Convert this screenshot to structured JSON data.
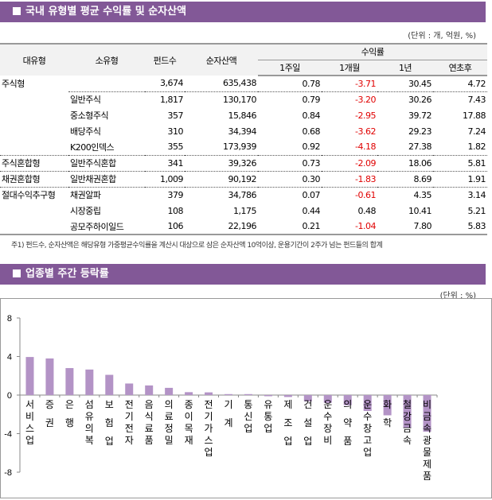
{
  "section1": {
    "title": "국내 유형별 평균 수익률 및 순자산액",
    "unit": "(단위 : 개, 억원, %)",
    "headers": {
      "major": "대유형",
      "minor": "소유형",
      "funds": "펀드수",
      "assets": "순자산액",
      "returns": "수익률",
      "w1": "1주일",
      "m1": "1개월",
      "y1": "1년",
      "ytd": "연초후"
    },
    "rows": [
      {
        "major": "주식형",
        "minor": "",
        "funds": "3,674",
        "assets": "635,438",
        "w1": "0.78",
        "m1": "-3.71",
        "y1": "30.45",
        "ytd": "4.72"
      },
      {
        "major": "",
        "minor": "일반주식",
        "funds": "1,817",
        "assets": "130,170",
        "w1": "0.79",
        "m1": "-3.20",
        "y1": "30.26",
        "ytd": "7.43"
      },
      {
        "major": "",
        "minor": "중소형주식",
        "funds": "357",
        "assets": "15,846",
        "w1": "0.84",
        "m1": "-2.95",
        "y1": "39.72",
        "ytd": "17.88"
      },
      {
        "major": "",
        "minor": "배당주식",
        "funds": "310",
        "assets": "34,394",
        "w1": "0.68",
        "m1": "-3.62",
        "y1": "29.23",
        "ytd": "7.24"
      },
      {
        "major": "",
        "minor": "K200인덱스",
        "funds": "355",
        "assets": "173,939",
        "w1": "0.92",
        "m1": "-4.18",
        "y1": "27.38",
        "ytd": "1.82"
      },
      {
        "major": "주식혼합형",
        "minor": "일반주식혼합",
        "funds": "341",
        "assets": "39,326",
        "w1": "0.73",
        "m1": "-2.09",
        "y1": "18.06",
        "ytd": "5.81"
      },
      {
        "major": "채권혼합형",
        "minor": "일반채권혼합",
        "funds": "1,009",
        "assets": "90,192",
        "w1": "0.30",
        "m1": "-1.83",
        "y1": "8.69",
        "ytd": "1.91"
      },
      {
        "major": "절대수익추구형",
        "minor": "채권알파",
        "funds": "379",
        "assets": "34,786",
        "w1": "0.07",
        "m1": "-0.61",
        "y1": "4.35",
        "ytd": "3.14"
      },
      {
        "major": "",
        "minor": "시장중립",
        "funds": "108",
        "assets": "1,175",
        "w1": "0.44",
        "m1": "0.48",
        "y1": "10.41",
        "ytd": "5.21"
      },
      {
        "major": "",
        "minor": "공모주하이일드",
        "funds": "106",
        "assets": "22,196",
        "w1": "0.21",
        "m1": "-1.04",
        "y1": "7.80",
        "ytd": "5.83"
      }
    ],
    "note": "주1) 펀드수, 순자산액은 해당유형 가중평균수익률을 계산시 대상으로 삼은 순자산액 10억이상, 운용기간이 2주가 넘는 펀드들의 합계"
  },
  "section2": {
    "title": "업종별 주간 등락률",
    "unit": "(단위 : %)"
  },
  "colors": {
    "header_bar": "#825897",
    "bar": "#b393c6",
    "negative": "#e00000"
  },
  "chart_data": {
    "type": "bar",
    "ylim": [
      -8,
      8
    ],
    "yticks": [
      8,
      4,
      0,
      -4,
      -8
    ],
    "grid": false,
    "categories": [
      "서비스업",
      "증 권",
      "은 행",
      "섬유의복",
      "보 험 업",
      "전기전자",
      "음식료품",
      "의료정밀",
      "종이목재",
      "전기가스업",
      "기 계",
      "통신업",
      "유통업",
      "제 조 업",
      "건 설 업",
      "운수장비",
      "의 약 품",
      "운수창고업",
      "화 학",
      "철강금속",
      "비금속광물제품"
    ],
    "values": [
      3.95,
      3.8,
      2.8,
      2.65,
      2.1,
      1.2,
      1.0,
      0.75,
      0.3,
      0.28,
      0.1,
      0.1,
      -0.12,
      -0.2,
      -0.65,
      -0.8,
      -1.05,
      -1.65,
      -2.1,
      -3.4,
      -3.8
    ]
  }
}
